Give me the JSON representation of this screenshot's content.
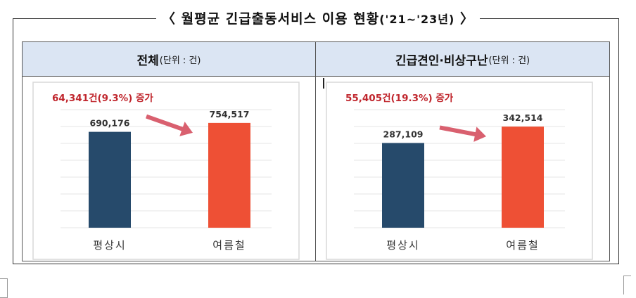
{
  "title": {
    "main": "〈 월평균  긴급출동서비스  이용  현황",
    "period": "('21~'23년)",
    "close": " 〉"
  },
  "panels": [
    {
      "heading": "전체",
      "unit": "(단위 : 건)"
    },
    {
      "heading": "긴급견인·비상구난",
      "unit": "(단위 : 건)"
    }
  ],
  "colors": {
    "ordinary": "#264a6b",
    "summer": "#ee5035",
    "annotation": "#c0262d",
    "arrow": "#d9606f",
    "header_bg": "#dbe5f3"
  },
  "chart_data": [
    {
      "type": "bar",
      "categories": [
        "평상시",
        "여름철"
      ],
      "values": [
        690176,
        754517
      ],
      "value_labels": [
        "690,176",
        "754,517"
      ],
      "annotation": "64,341건(9.3%) 증가",
      "ylim": [
        0,
        850000
      ],
      "grid": true
    },
    {
      "type": "bar",
      "categories": [
        "평상시",
        "여름철"
      ],
      "values": [
        287109,
        342514
      ],
      "value_labels": [
        "287,109",
        "342,514"
      ],
      "annotation": "55,405건(19.3%) 증가",
      "ylim": [
        0,
        400000
      ],
      "grid": true
    }
  ]
}
